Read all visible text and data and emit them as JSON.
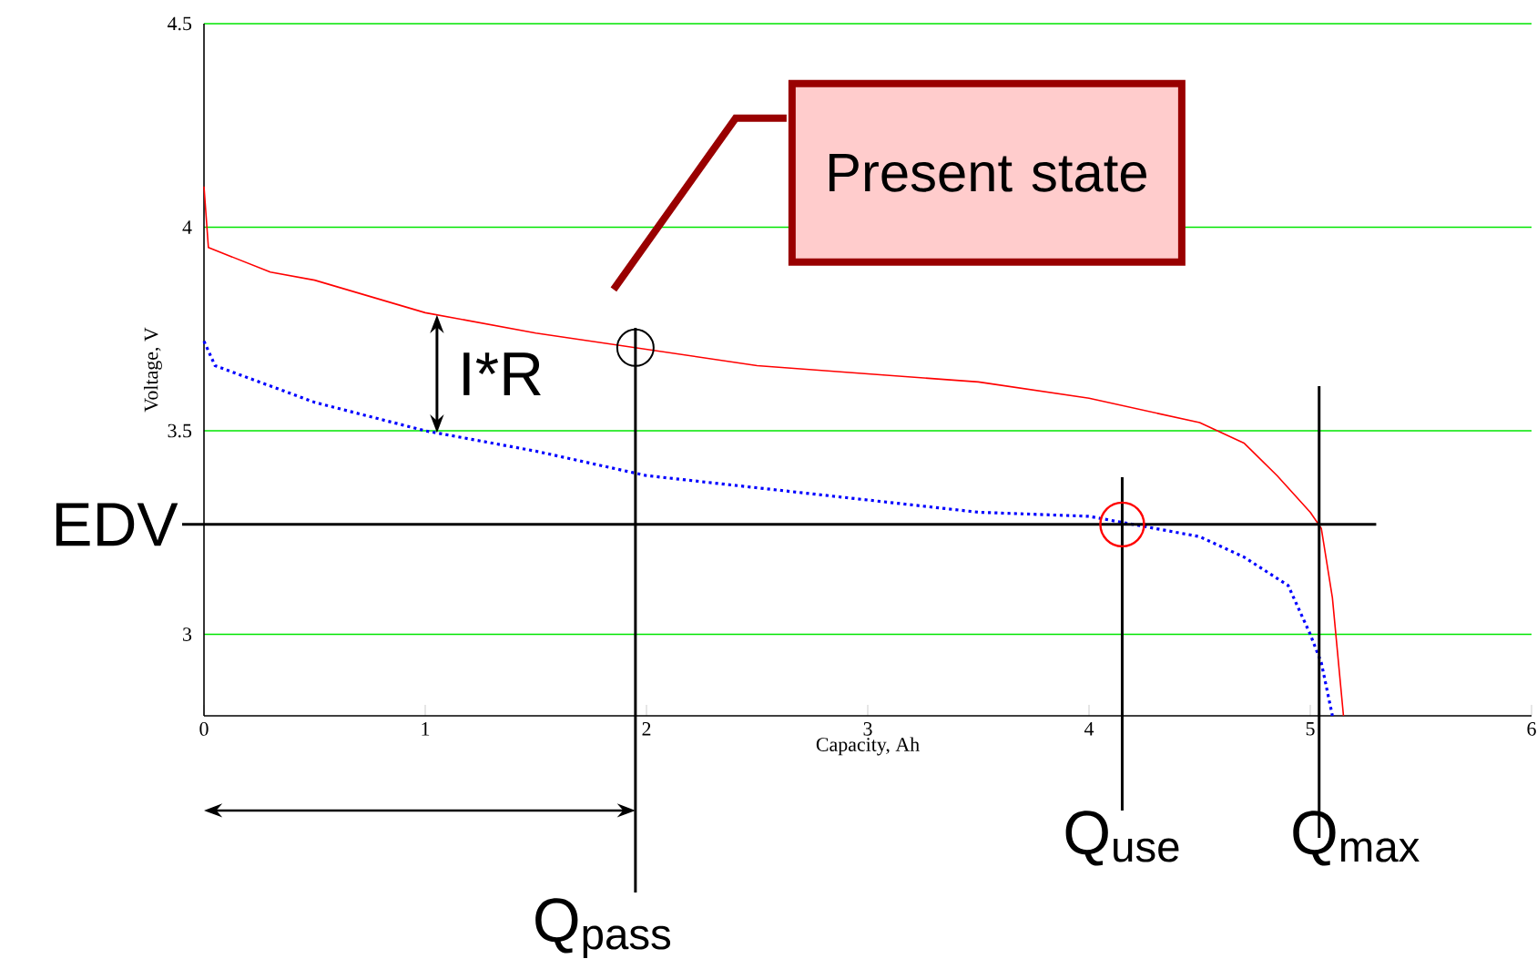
{
  "chart_data": {
    "type": "line",
    "xlabel": "Capacity, Ah",
    "ylabel": "Voltage, V",
    "xlim": [
      0,
      6
    ],
    "xticks": [
      0,
      1,
      2,
      3,
      4,
      5,
      6
    ],
    "ylim": [
      2.8,
      4.5
    ],
    "yticks": [
      3,
      3.5,
      4,
      4.5
    ],
    "grid": "y",
    "series": [
      {
        "color": "#ff0000",
        "line_style": "solid",
        "x": [
          0,
          0.02,
          0.3,
          0.5,
          1,
          1.5,
          2,
          2.5,
          3,
          3.5,
          4,
          4.5,
          4.7,
          4.85,
          5.0,
          5.05,
          5.1,
          5.15
        ],
        "values": [
          4.1,
          3.95,
          3.89,
          3.87,
          3.79,
          3.74,
          3.7,
          3.66,
          3.64,
          3.62,
          3.58,
          3.52,
          3.47,
          3.39,
          3.3,
          3.26,
          3.09,
          2.8
        ]
      },
      {
        "color": "#0000ff",
        "line_style": "dotted",
        "x": [
          0,
          0.05,
          0.3,
          0.5,
          1,
          1.5,
          2,
          2.5,
          3,
          3.5,
          4,
          4.2,
          4.5,
          4.7,
          4.9,
          5.0,
          5.05,
          5.1
        ],
        "values": [
          3.72,
          3.66,
          3.61,
          3.57,
          3.5,
          3.45,
          3.39,
          3.36,
          3.33,
          3.3,
          3.29,
          3.27,
          3.24,
          3.19,
          3.12,
          3.0,
          2.93,
          2.8
        ]
      }
    ],
    "ref_lines": [
      {
        "axis": "y",
        "value": 3.27,
        "label": "EDV"
      },
      {
        "axis": "x",
        "value": 1.95,
        "label": "Q$_{pass}$"
      },
      {
        "axis": "x",
        "value": 4.15,
        "label": "Q$_{use}$"
      },
      {
        "axis": "x",
        "value": 5.04,
        "label": "Q$_{max}$"
      }
    ],
    "annotations": [
      "Present state",
      "I*R"
    ]
  }
}
